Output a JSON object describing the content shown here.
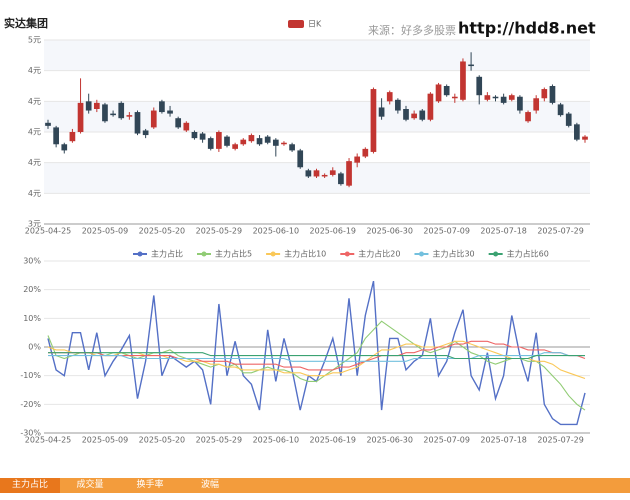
{
  "chart_data": [
    {
      "type": "candlestick",
      "title": "实达集团",
      "source": "来源：好多多股票",
      "site": "http://hdd8.net",
      "categories": [
        "2025-04-25",
        null,
        null,
        null,
        null,
        null,
        null,
        "2025-05-09",
        null,
        null,
        null,
        null,
        null,
        null,
        "2025-05-20",
        null,
        null,
        null,
        null,
        null,
        null,
        "2025-05-29",
        null,
        null,
        null,
        null,
        null,
        null,
        "2025-06-10",
        null,
        null,
        null,
        null,
        null,
        null,
        "2025-06-19",
        null,
        null,
        null,
        null,
        null,
        null,
        "2025-06-30",
        null,
        null,
        null,
        null,
        null,
        null,
        "2025-07-09",
        null,
        null,
        null,
        null,
        null,
        null,
        "2025-07-18",
        null,
        null,
        null,
        null,
        null,
        null,
        "2025-07-29",
        null,
        null,
        null
      ],
      "ylim": [
        3.4,
        4.6
      ],
      "yticks": [
        {
          "value": 3.4,
          "label": "3元"
        },
        {
          "value": 3.6,
          "label": "4元"
        },
        {
          "value": 3.8,
          "label": "4元"
        },
        {
          "value": 4.0,
          "label": "4元"
        },
        {
          "value": 4.2,
          "label": "4元"
        },
        {
          "value": 4.4,
          "label": "4元"
        },
        {
          "value": 4.6,
          "label": "5元"
        }
      ],
      "grid": true,
      "series": [
        {
          "name": "日K",
          "color": "#c23531",
          "down_color": "#314656",
          "open": [
            4.06,
            4.03,
            3.92,
            3.94,
            4.0,
            4.2,
            4.15,
            4.18,
            4.12,
            4.19,
            4.1,
            4.13,
            4.01,
            4.03,
            4.2,
            4.14,
            4.09,
            4.01,
            4.0,
            3.99,
            3.96,
            3.89,
            3.97,
            3.89,
            3.92,
            3.94,
            3.96,
            3.97,
            3.95,
            3.92,
            3.92,
            3.88,
            3.75,
            3.71,
            3.71,
            3.72,
            3.73,
            3.65,
            3.8,
            3.84,
            3.87,
            4.16,
            4.2,
            4.21,
            4.15,
            4.09,
            4.14,
            4.08,
            4.2,
            4.3,
            4.22,
            4.21,
            4.44,
            4.36,
            4.21,
            4.23,
            4.23,
            4.21,
            4.23,
            4.07,
            4.14,
            4.22,
            4.3,
            4.18,
            4.12,
            4.05,
            3.95
          ],
          "close": [
            4.04,
            3.92,
            3.88,
            4.0,
            4.19,
            4.14,
            4.19,
            4.07,
            4.11,
            4.09,
            4.11,
            3.99,
            3.98,
            4.14,
            4.13,
            4.12,
            4.03,
            4.06,
            3.96,
            3.95,
            3.89,
            4.0,
            3.91,
            3.92,
            3.95,
            3.98,
            3.92,
            3.93,
            3.91,
            3.93,
            3.88,
            3.77,
            3.71,
            3.75,
            3.72,
            3.75,
            3.66,
            3.81,
            3.84,
            3.89,
            4.28,
            4.1,
            4.26,
            4.14,
            4.08,
            4.12,
            4.08,
            4.25,
            4.31,
            4.24,
            4.23,
            4.46,
            4.43,
            4.24,
            4.24,
            4.22,
            4.19,
            4.24,
            4.14,
            4.13,
            4.22,
            4.28,
            4.19,
            4.11,
            4.04,
            3.95,
            3.97
          ],
          "low": [
            4.02,
            3.9,
            3.86,
            3.93,
            3.99,
            4.12,
            4.13,
            4.06,
            4.1,
            4.08,
            4.08,
            3.98,
            3.96,
            4.02,
            4.12,
            4.1,
            4.02,
            4.0,
            3.95,
            3.93,
            3.88,
            3.87,
            3.9,
            3.88,
            3.91,
            3.93,
            3.91,
            3.92,
            3.84,
            3.91,
            3.87,
            3.76,
            3.7,
            3.7,
            3.7,
            3.71,
            3.65,
            3.64,
            3.77,
            3.83,
            3.86,
            4.08,
            4.18,
            4.12,
            4.07,
            4.08,
            4.07,
            4.07,
            4.19,
            4.23,
            4.19,
            4.2,
            4.4,
            4.18,
            4.2,
            4.2,
            4.18,
            4.2,
            4.12,
            4.06,
            4.12,
            4.2,
            4.18,
            4.1,
            4.03,
            3.94,
            3.93
          ],
          "high": [
            4.08,
            4.04,
            3.93,
            4.02,
            4.35,
            4.25,
            4.21,
            4.19,
            4.14,
            4.2,
            4.13,
            4.14,
            4.02,
            4.16,
            4.21,
            4.17,
            4.1,
            4.07,
            4.01,
            4.0,
            3.97,
            4.01,
            3.98,
            3.93,
            3.96,
            3.99,
            3.98,
            3.98,
            3.96,
            3.94,
            3.93,
            3.89,
            3.76,
            3.76,
            3.73,
            3.77,
            3.74,
            3.83,
            3.86,
            3.9,
            4.29,
            4.22,
            4.27,
            4.22,
            4.17,
            4.14,
            4.15,
            4.26,
            4.32,
            4.31,
            4.25,
            4.48,
            4.52,
            4.37,
            4.26,
            4.24,
            4.25,
            4.25,
            4.24,
            4.14,
            4.24,
            4.29,
            4.31,
            4.19,
            4.13,
            4.06,
            3.98
          ]
        }
      ]
    },
    {
      "type": "line",
      "categories": [
        "2025-04-25",
        null,
        null,
        null,
        null,
        null,
        null,
        "2025-05-09",
        null,
        null,
        null,
        null,
        null,
        null,
        "2025-05-20",
        null,
        null,
        null,
        null,
        null,
        null,
        "2025-05-29",
        null,
        null,
        null,
        null,
        null,
        null,
        "2025-06-10",
        null,
        null,
        null,
        null,
        null,
        null,
        "2025-06-19",
        null,
        null,
        null,
        null,
        null,
        null,
        "2025-06-30",
        null,
        null,
        null,
        null,
        null,
        null,
        "2025-07-09",
        null,
        null,
        null,
        null,
        null,
        null,
        "2025-07-18",
        null,
        null,
        null,
        null,
        null,
        null,
        "2025-07-29",
        null,
        null,
        null
      ],
      "ylim": [
        -30,
        30
      ],
      "yticks": [
        {
          "value": -30,
          "label": "-30%"
        },
        {
          "value": -20,
          "label": "-20%"
        },
        {
          "value": -10,
          "label": "-10%"
        },
        {
          "value": 0,
          "label": "0%"
        },
        {
          "value": 10,
          "label": "10%"
        },
        {
          "value": 20,
          "label": "20%"
        },
        {
          "value": 30,
          "label": "30%"
        }
      ],
      "grid": true,
      "series": [
        {
          "name": "主力占比",
          "color": "#5470c6",
          "values": [
            3,
            -8,
            -10,
            5,
            5,
            -8,
            5,
            -10,
            -5,
            -1,
            4,
            -18,
            -5,
            18,
            -10,
            -3,
            -5,
            -7,
            -5,
            -8,
            -20,
            15,
            -10,
            2,
            -10,
            -13,
            -22,
            6,
            -12,
            3,
            -8,
            -22,
            -10,
            -12,
            -5,
            3,
            -10,
            17,
            -10,
            11,
            23,
            -22,
            3,
            3,
            -8,
            -5,
            -3,
            10,
            -10,
            -5,
            5,
            13,
            -10,
            -15,
            -2,
            -18,
            -10,
            11,
            -3,
            -12,
            5,
            -20,
            -25,
            -27,
            -27,
            -27,
            -16
          ]
        },
        {
          "name": "主力占比5",
          "color": "#91cc75",
          "values": [
            4,
            -3,
            -4,
            -3,
            -2,
            -2,
            -2,
            -3,
            -2,
            -2,
            -3,
            -4,
            -3,
            -2,
            -2,
            -1,
            -3,
            -4,
            -5,
            -6,
            -7,
            -6,
            -7,
            -6,
            -9,
            -9,
            -8,
            -7,
            -8,
            -8,
            -9,
            -11,
            -12,
            -12,
            -10,
            -8,
            -6,
            -4,
            -2,
            3,
            6,
            9,
            7,
            5,
            3,
            1,
            -1,
            -2,
            -1,
            0,
            2,
            0,
            -2,
            -3,
            -5,
            -6,
            -5,
            -4,
            -4,
            -5,
            -5,
            -7,
            -10,
            -13,
            -17,
            -20,
            -22
          ]
        },
        {
          "name": "主力占比10",
          "color": "#fac858",
          "values": [
            0,
            -1,
            -1,
            -2,
            -2,
            -2,
            -3,
            -3,
            -3,
            -2,
            -2,
            -2,
            -3,
            -3,
            -3,
            -4,
            -4,
            -5,
            -5,
            -5,
            -6,
            -6,
            -7,
            -7,
            -8,
            -8,
            -8,
            -8,
            -8,
            -9,
            -9,
            -9,
            -10,
            -10,
            -10,
            -9,
            -9,
            -8,
            -7,
            -5,
            -3,
            -1,
            -1,
            0,
            1,
            1,
            0,
            0,
            0,
            1,
            2,
            2,
            1,
            0,
            -1,
            -2,
            -3,
            -4,
            -4,
            -4,
            -5,
            -5,
            -6,
            -8,
            -9,
            -10,
            -11
          ]
        },
        {
          "name": "主力占比20",
          "color": "#ee6666",
          "values": [
            -2,
            -2,
            -2,
            -2,
            -2,
            -2,
            -2,
            -3,
            -3,
            -3,
            -3,
            -3,
            -3,
            -3,
            -3,
            -3,
            -4,
            -4,
            -4,
            -5,
            -5,
            -5,
            -5,
            -6,
            -6,
            -6,
            -6,
            -6,
            -6,
            -7,
            -7,
            -7,
            -8,
            -8,
            -8,
            -8,
            -7,
            -7,
            -6,
            -5,
            -4,
            -3,
            -3,
            -3,
            -2,
            -2,
            -1,
            -1,
            0,
            0,
            1,
            1,
            2,
            2,
            2,
            1,
            1,
            0,
            0,
            -1,
            -1,
            -1,
            -2,
            -2,
            -3,
            -3,
            -4
          ]
        },
        {
          "name": "主力占比30",
          "color": "#73c0de",
          "values": [
            -3,
            -3,
            -3,
            -3,
            -3,
            -3,
            -3,
            -3,
            -3,
            -3,
            -4,
            -4,
            -4,
            -4,
            -4,
            -4,
            -4,
            -4,
            -4,
            -4,
            -4,
            -4,
            -4,
            -4,
            -4,
            -4,
            -4,
            -4,
            -4,
            -4,
            -5,
            -5,
            -5,
            -5,
            -5,
            -5,
            -5,
            -5,
            -5,
            -5,
            -5,
            -5,
            -5,
            -5,
            -5,
            -4,
            -4,
            -4,
            -4,
            -4,
            -4,
            -4,
            -4,
            -3,
            -3,
            -3,
            -3,
            -3,
            -3,
            -3,
            -3,
            -2,
            -2,
            -2,
            -3,
            -3,
            -3
          ]
        },
        {
          "name": "主力占比60",
          "color": "#3ba272",
          "values": [
            -2,
            -2,
            -2,
            -2,
            -2,
            -2,
            -2,
            -2,
            -2,
            -2,
            -2,
            -2,
            -2,
            -2,
            -2,
            -2,
            -2,
            -2,
            -2,
            -2,
            -3,
            -3,
            -3,
            -3,
            -3,
            -3,
            -3,
            -3,
            -3,
            -3,
            -3,
            -3,
            -3,
            -3,
            -3,
            -3,
            -3,
            -3,
            -3,
            -3,
            -3,
            -3,
            -3,
            -3,
            -3,
            -3,
            -3,
            -3,
            -3,
            -3,
            -4,
            -4,
            -4,
            -4,
            -4,
            -4,
            -4,
            -4,
            -4,
            -4,
            -3,
            -3,
            -3,
            -3,
            -3,
            -3,
            -3
          ]
        }
      ]
    }
  ],
  "tabs": {
    "items": [
      "主力占比",
      "成交量",
      "换手率",
      "波幅"
    ],
    "active": 0
  }
}
